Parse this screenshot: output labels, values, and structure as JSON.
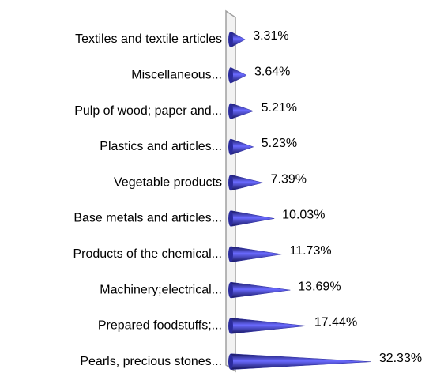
{
  "chart_data": {
    "type": "bar",
    "orientation": "horizontal",
    "shape": "cone",
    "categories": [
      "Textiles and textile articles",
      "Miscellaneous...",
      "Pulp of wood; paper and...",
      "Plastics and articles...",
      "Vegetable products",
      "Base metals and articles...",
      "Products of the chemical...",
      "Machinery;electrical...",
      "Prepared foodstuffs;...",
      "Pearls, precious stones..."
    ],
    "values": [
      3.31,
      3.64,
      5.21,
      5.23,
      7.39,
      10.03,
      11.73,
      13.69,
      17.44,
      32.33
    ],
    "value_labels": [
      "3.31%",
      "3.64%",
      "5.21%",
      "5.23%",
      "7.39%",
      "10.03%",
      "11.73%",
      "13.69%",
      "17.44%",
      "32.33%"
    ],
    "color": "#2b2b9e"
  }
}
